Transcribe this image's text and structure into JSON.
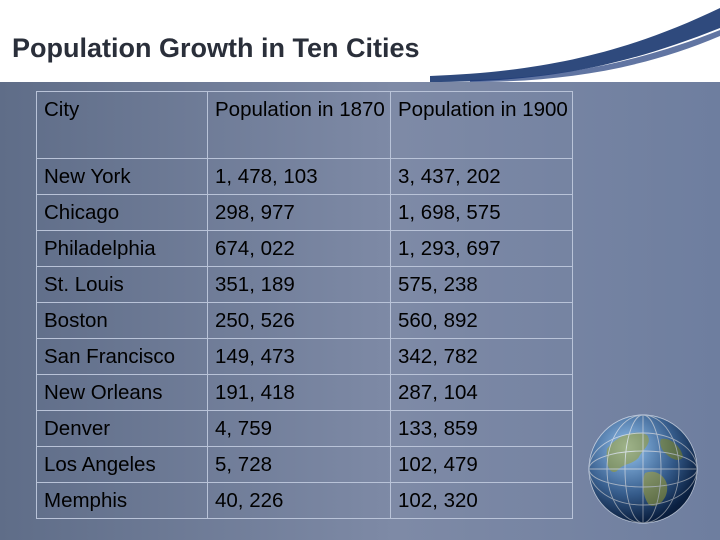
{
  "slide": {
    "title": "Population Growth in Ten Cities",
    "columns": [
      "City",
      "Population in 1870",
      "Population in 1900"
    ],
    "rows": [
      {
        "city": "New York",
        "p1870": "1, 478, 103",
        "p1900": "3, 437, 202"
      },
      {
        "city": "Chicago",
        "p1870": "298, 977",
        "p1900": "1, 698, 575"
      },
      {
        "city": "Philadelphia",
        "p1870": "674, 022",
        "p1900": "1, 293, 697"
      },
      {
        "city": "St. Louis",
        "p1870": "351, 189",
        "p1900": "575, 238"
      },
      {
        "city": "Boston",
        "p1870": "250, 526",
        "p1900": "560, 892"
      },
      {
        "city": "San Francisco",
        "p1870": "149, 473",
        "p1900": "342, 782"
      },
      {
        "city": "New Orleans",
        "p1870": "191, 418",
        "p1900": "287, 104"
      },
      {
        "city": "Denver",
        "p1870": "4, 759",
        "p1900": "133, 859"
      },
      {
        "city": "Los Angeles",
        "p1870": "5, 728",
        "p1900": "102, 479"
      },
      {
        "city": "Memphis",
        "p1870": "40, 226",
        "p1900": "102, 320"
      }
    ]
  },
  "colors": {
    "background": "#6f7f9e",
    "header": "#ffffff",
    "accent_dark": "#0b2a66",
    "table_border": "#b9c3d8"
  },
  "icons": [
    "globe-icon"
  ]
}
